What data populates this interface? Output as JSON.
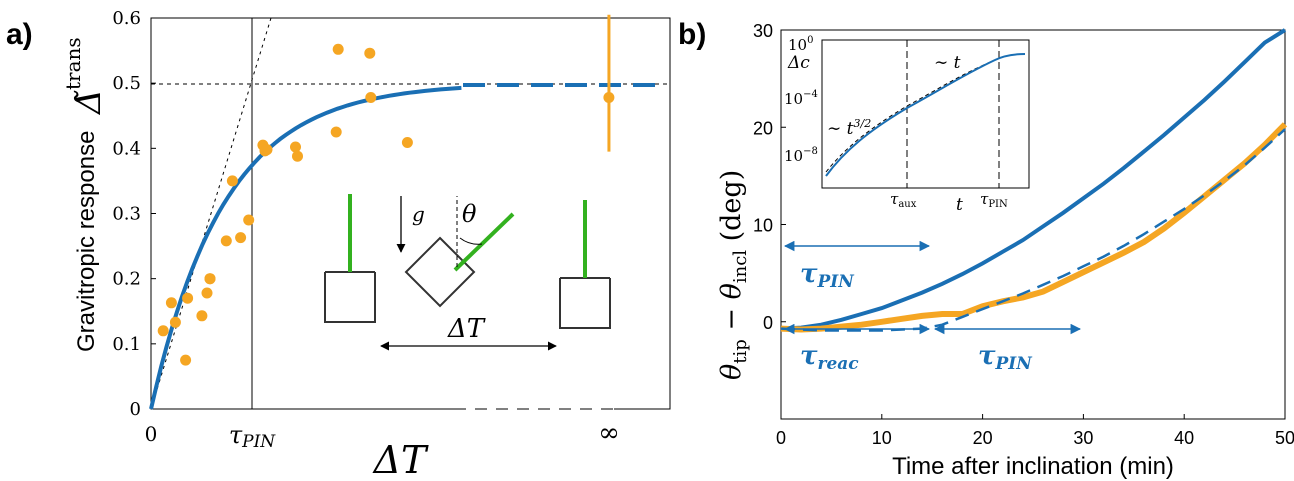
{
  "panel_a": {
    "label": "a)",
    "ylabel": "Gravitropic response",
    "ylabel_symbol": "Δ̃",
    "ylabel_sup": "trans",
    "xlabel": "ΔT",
    "xtick_special": [
      "0",
      "τPIN",
      "∞"
    ],
    "inset_labels": {
      "g": "g",
      "theta": "θ",
      "dT": "ΔT"
    }
  },
  "panel_b": {
    "label": "b)",
    "ylabel": "θtip − θincl (deg)",
    "xlabel": "Time after inclination (min)",
    "tau_pin_label": "τPIN",
    "tau_reac_label": "τreac",
    "inset": {
      "ylabel": "Δc",
      "ytick_labels": [
        "10^0",
        "10^-4",
        "10^-8"
      ],
      "annot_t32": "∼ t^3/2",
      "annot_t": "∼ t",
      "xtick_labels": [
        "τaux",
        "t",
        "τPIN"
      ]
    }
  },
  "colors": {
    "blue": "#1a6fb4",
    "orange": "#f5a623",
    "green": "#33b11f",
    "black": "#000000"
  },
  "chart_data": [
    {
      "type": "scatter",
      "xlim": [
        0,
        5.1
      ],
      "ylim": [
        0,
        0.6
      ],
      "yticks": [
        0,
        0.1,
        0.2,
        0.3,
        0.4,
        0.5,
        0.6
      ],
      "xtick_positions": [
        0,
        1,
        4.5
      ],
      "tau_pin": 1,
      "asymptote": 0.5,
      "grid": false,
      "series": [
        {
          "kind": "points",
          "x": [
            0.12,
            0.2,
            0.24,
            0.36,
            0.34,
            0.5,
            0.55,
            0.58,
            0.58,
            0.74,
            0.8,
            0.88,
            0.96,
            1.1,
            1.12,
            1.14,
            1.42,
            1.44,
            1.82,
            1.84,
            2.15,
            2.16,
            2.52,
            4.5
          ],
          "y": [
            0.12,
            0.163,
            0.133,
            0.17,
            0.075,
            0.143,
            0.178,
            0.2,
            0.2,
            0.258,
            0.35,
            0.263,
            0.29,
            0.405,
            0.396,
            0.398,
            0.402,
            0.388,
            0.425,
            0.552,
            0.546,
            0.478,
            0.409,
            0.478
          ],
          "errorbar": {
            "x": 4.5,
            "lo": 0.395,
            "hi": 0.605
          }
        }
      ]
    },
    {
      "type": "line",
      "xlim": [
        0,
        50
      ],
      "ylim": [
        -10,
        30
      ],
      "xticks": [
        0,
        10,
        20,
        30,
        40,
        50
      ],
      "yticks": [
        0,
        10,
        20,
        30
      ],
      "grid": false,
      "series": [
        {
          "kind": "solid-blue",
          "x": [
            0,
            2,
            4,
            6,
            8,
            10,
            12,
            14,
            16,
            18,
            20,
            22,
            24,
            26,
            28,
            30,
            32,
            34,
            36,
            38,
            40,
            42,
            44,
            46,
            48,
            50
          ],
          "y": [
            -0.7,
            -0.6,
            -0.3,
            0.2,
            0.8,
            1.4,
            2.2,
            3.0,
            3.9,
            4.9,
            6.0,
            7.2,
            8.4,
            9.8,
            11.2,
            12.7,
            14.2,
            15.8,
            17.5,
            19.2,
            21.0,
            22.8,
            24.7,
            26.7,
            28.7,
            30.5
          ]
        },
        {
          "kind": "orange",
          "x": [
            0,
            2,
            4,
            6,
            8,
            10,
            12,
            14,
            16,
            18,
            20,
            22,
            24,
            26,
            28,
            30,
            32,
            34,
            36,
            38,
            40,
            42,
            44,
            46,
            48,
            50
          ],
          "y": [
            -0.7,
            -0.8,
            -0.7,
            -0.5,
            -0.3,
            0,
            0.3,
            0.6,
            0.8,
            0.8,
            1.6,
            2.1,
            2.5,
            3.1,
            4.1,
            5.1,
            6.1,
            7.1,
            8.2,
            9.6,
            11.2,
            12.9,
            14.6,
            16.3,
            18.2,
            20.3
          ]
        },
        {
          "kind": "dashed-blue",
          "x": [
            0,
            2,
            4,
            6,
            8,
            10,
            12,
            14,
            16,
            18,
            20,
            22,
            24,
            26,
            28,
            30,
            32,
            34,
            36,
            38,
            40,
            42,
            44,
            46,
            48,
            50
          ],
          "y": [
            -0.7,
            -0.8,
            -0.9,
            -0.9,
            -0.9,
            -0.9,
            -0.8,
            -0.7,
            -0.3,
            0.5,
            1.3,
            2.1,
            2.9,
            3.8,
            4.7,
            5.7,
            6.7,
            7.8,
            9.0,
            10.3,
            11.6,
            13.0,
            14.5,
            16.1,
            17.9,
            19.8
          ]
        }
      ]
    }
  ]
}
